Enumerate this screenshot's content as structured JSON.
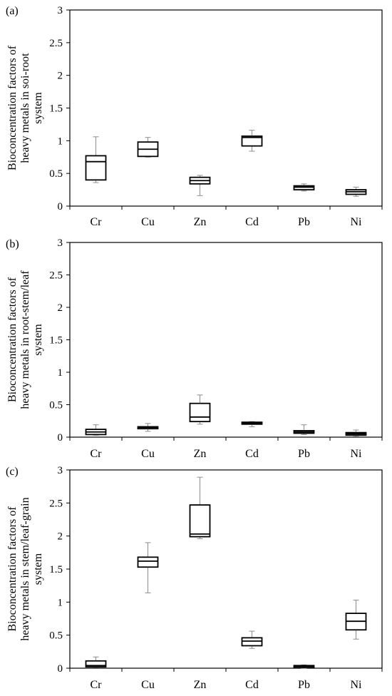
{
  "chart_data": [
    {
      "type": "box",
      "panel_label": "(a)",
      "ylabel": [
        "Bioconcentration factors of",
        "heavy metals in soi-root",
        "system"
      ],
      "ylim": [
        0,
        3
      ],
      "yticks": [
        "0",
        "0.5",
        "1",
        "1.5",
        "2",
        "2.5",
        "3"
      ],
      "grid": false,
      "categories": [
        "Cr",
        "Cu",
        "Zn",
        "Cd",
        "Pb",
        "Ni"
      ],
      "boxes": [
        {
          "min": 0.36,
          "q1": 0.4,
          "median": 0.68,
          "q3": 0.77,
          "max": 1.06
        },
        {
          "min": 0.75,
          "q1": 0.76,
          "median": 0.87,
          "q3": 0.98,
          "max": 1.05
        },
        {
          "min": 0.16,
          "q1": 0.34,
          "median": 0.39,
          "q3": 0.44,
          "max": 0.47
        },
        {
          "min": 0.84,
          "q1": 0.92,
          "median": 1.05,
          "q3": 1.07,
          "max": 1.16
        },
        {
          "min": 0.23,
          "q1": 0.25,
          "median": 0.29,
          "q3": 0.31,
          "max": 0.34
        },
        {
          "min": 0.15,
          "q1": 0.18,
          "median": 0.22,
          "q3": 0.25,
          "max": 0.29
        }
      ]
    },
    {
      "type": "box",
      "panel_label": "(b)",
      "ylabel": [
        "Bioconcentration factors of",
        "heavy metals in root-stem/leaf",
        "system"
      ],
      "ylim": [
        0,
        3
      ],
      "yticks": [
        "0",
        "0.5",
        "1",
        "1.5",
        "2",
        "2.5",
        "3"
      ],
      "grid": false,
      "categories": [
        "Cr",
        "Cu",
        "Zn",
        "Cd",
        "Pb",
        "Ni"
      ],
      "boxes": [
        {
          "min": 0.03,
          "q1": 0.04,
          "median": 0.08,
          "q3": 0.12,
          "max": 0.19
        },
        {
          "min": 0.09,
          "q1": 0.13,
          "median": 0.15,
          "q3": 0.16,
          "max": 0.21
        },
        {
          "min": 0.2,
          "q1": 0.24,
          "median": 0.31,
          "q3": 0.52,
          "max": 0.65
        },
        {
          "min": 0.16,
          "q1": 0.2,
          "median": 0.21,
          "q3": 0.23,
          "max": 0.24
        },
        {
          "min": 0.04,
          "q1": 0.06,
          "median": 0.08,
          "q3": 0.1,
          "max": 0.19
        },
        {
          "min": 0.01,
          "q1": 0.03,
          "median": 0.05,
          "q3": 0.07,
          "max": 0.11
        }
      ]
    },
    {
      "type": "box",
      "panel_label": "(c)",
      "ylabel": [
        "Bioconcentration factors of",
        "heavy metals in stem/leaf-grain",
        "system"
      ],
      "ylim": [
        0,
        3
      ],
      "yticks": [
        "0",
        "0.5",
        "1",
        "1.5",
        "2",
        "2.5",
        "3"
      ],
      "grid": false,
      "categories": [
        "Cr",
        "Cu",
        "Zn",
        "Cd",
        "Pb",
        "Ni"
      ],
      "boxes": [
        {
          "min": 0.01,
          "q1": 0.02,
          "median": 0.04,
          "q3": 0.11,
          "max": 0.17
        },
        {
          "min": 1.14,
          "q1": 1.53,
          "median": 1.62,
          "q3": 1.68,
          "max": 1.9
        },
        {
          "min": 1.96,
          "q1": 1.99,
          "median": 2.03,
          "q3": 2.47,
          "max": 2.89
        },
        {
          "min": 0.3,
          "q1": 0.34,
          "median": 0.41,
          "q3": 0.46,
          "max": 0.56
        },
        {
          "min": 0.0,
          "q1": 0.01,
          "median": 0.03,
          "q3": 0.04,
          "max": 0.05
        },
        {
          "min": 0.44,
          "q1": 0.58,
          "median": 0.71,
          "q3": 0.83,
          "max": 1.03
        }
      ]
    }
  ]
}
